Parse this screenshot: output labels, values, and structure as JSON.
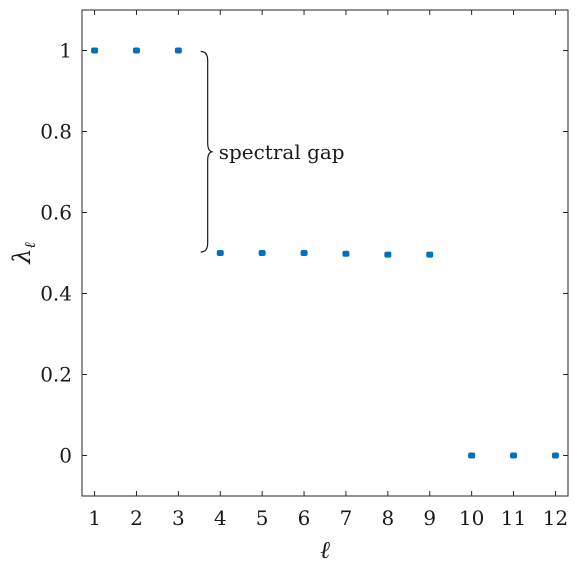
{
  "chart_data": {
    "type": "scatter",
    "x": [
      1,
      2,
      3,
      4,
      5,
      6,
      7,
      8,
      9,
      10,
      11,
      12
    ],
    "y": [
      1.0,
      1.0,
      1.0,
      0.5,
      0.5,
      0.5,
      0.498,
      0.496,
      0.496,
      0.0,
      0.0,
      0.0
    ],
    "xlim": [
      0.7,
      12.3
    ],
    "ylim": [
      -0.1,
      1.1
    ],
    "xticks": [
      1,
      2,
      3,
      4,
      5,
      6,
      7,
      8,
      9,
      10,
      11,
      12
    ],
    "yticks": [
      0,
      0.2,
      0.4,
      0.6,
      0.8,
      1
    ],
    "xtick_labels": [
      "1",
      "2",
      "3",
      "4",
      "5",
      "6",
      "7",
      "8",
      "9",
      "10",
      "11",
      "12"
    ],
    "ytick_labels": [
      "0",
      "0.2",
      "0.4",
      "0.6",
      "0.8",
      "1"
    ],
    "xlabel": "ℓ",
    "ylabel": "λℓ",
    "grid": false,
    "marker_color": "#0072BD",
    "annotation": {
      "text": "spectral gap",
      "brace_y_top": 1.0,
      "brace_y_bottom": 0.5,
      "brace_x": 3.7
    }
  }
}
